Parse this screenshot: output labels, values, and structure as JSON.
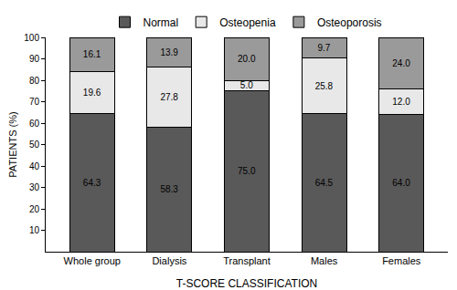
{
  "chart_data": {
    "type": "bar",
    "stacked": true,
    "data_labels": true,
    "legend": "top",
    "grid": false,
    "x_label": "T-SCORE CLASSIFICATION",
    "y_label": "PATIENTS (%)",
    "categories": [
      "Whole group",
      "Dialysis",
      "Transplant",
      "Males",
      "Females"
    ],
    "series": [
      {
        "name": "Normal",
        "color": "#595959",
        "values": [
          64.3,
          58.3,
          75.0,
          64.5,
          64.0
        ],
        "value_labels": [
          "64.3",
          "58.3",
          "75.0",
          "64.5",
          "64.0"
        ]
      },
      {
        "name": "Osteopenia",
        "color": "#e8e8e8",
        "values": [
          19.6,
          27.8,
          5.0,
          25.8,
          12.0
        ],
        "value_labels": [
          "19.6",
          "27.8",
          "5.0",
          "25.8",
          "12.0"
        ]
      },
      {
        "name": "Osteoporosis",
        "color": "#9a9a9a",
        "values": [
          16.1,
          13.9,
          20.0,
          9.7,
          24.0
        ],
        "value_labels": [
          "16.1",
          "13.9",
          "20.0",
          "9.7",
          "24.0"
        ]
      }
    ],
    "ylim": [
      0,
      100
    ],
    "yticks": [
      10,
      20,
      30,
      40,
      50,
      60,
      70,
      80,
      90,
      100
    ]
  }
}
